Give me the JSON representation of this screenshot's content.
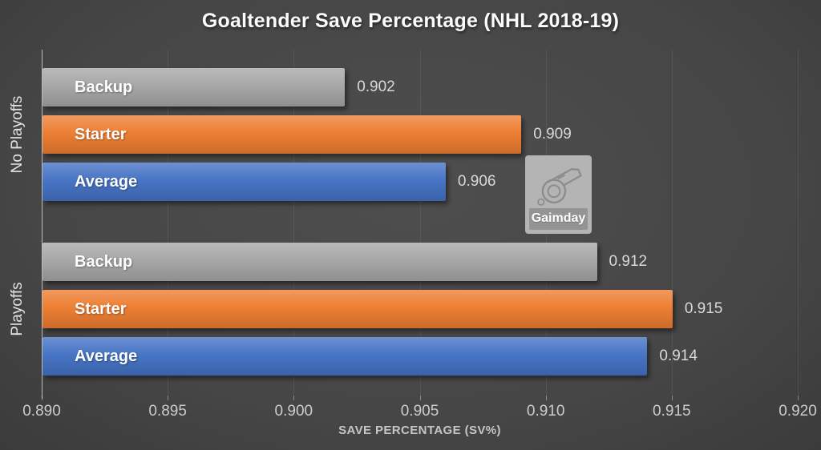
{
  "watermark": {
    "brand": "Gaimday",
    "icon": "whistle-icon"
  },
  "colors": {
    "background": "#3f3f3f",
    "bar_gray": "#a6a6a6",
    "bar_orange": "#ed7d31",
    "bar_blue": "#4472c4",
    "title_text": "#fbfbfb",
    "value_text": "#d9d9d9",
    "tick_text": "#cccccc"
  },
  "chart_data": {
    "type": "bar",
    "orientation": "horizontal",
    "title": "Goaltender Save Percentage (NHL 2018-19)",
    "xlabel": "SAVE PERCENTAGE (SV%)",
    "ylabel": "",
    "xlim": [
      0.89,
      0.92
    ],
    "xticks": [
      0.89,
      0.895,
      0.9,
      0.905,
      0.91,
      0.915,
      0.92
    ],
    "grid": true,
    "legend": "none",
    "groups": [
      {
        "label": "No Playoffs",
        "bars": [
          {
            "label": "Backup",
            "value": 0.902,
            "value_label": "0.902",
            "color": "#a6a6a6"
          },
          {
            "label": "Starter",
            "value": 0.909,
            "value_label": "0.909",
            "color": "#ed7d31"
          },
          {
            "label": "Average",
            "value": 0.906,
            "value_label": "0.906",
            "color": "#4472c4"
          }
        ]
      },
      {
        "label": "Playoffs",
        "bars": [
          {
            "label": "Backup",
            "value": 0.912,
            "value_label": "0.912",
            "color": "#a6a6a6"
          },
          {
            "label": "Starter",
            "value": 0.915,
            "value_label": "0.915",
            "color": "#ed7d31"
          },
          {
            "label": "Average",
            "value": 0.914,
            "value_label": "0.914",
            "color": "#4472c4"
          }
        ]
      }
    ]
  }
}
